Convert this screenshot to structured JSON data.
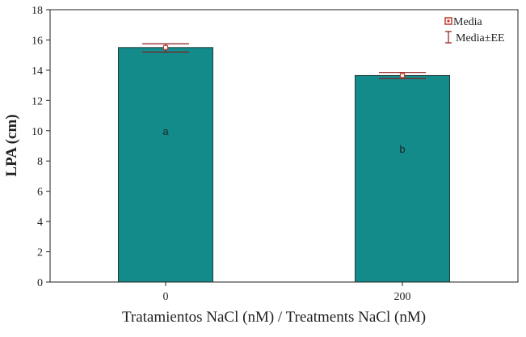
{
  "chart_data": {
    "type": "bar",
    "title": "",
    "categories": [
      "0",
      "200"
    ],
    "values": [
      15.5,
      13.65
    ],
    "error_low": [
      15.2,
      13.45
    ],
    "error_high": [
      15.75,
      13.85
    ],
    "significance_letters": [
      "a",
      "b"
    ],
    "xlabel": "Tratamientos NaCl (nM) / Treatments NaCl (nM)",
    "ylabel": "LPA (cm)",
    "ylim": [
      0,
      18
    ],
    "yticks": [
      0,
      2,
      4,
      6,
      8,
      10,
      12,
      14,
      16,
      18
    ],
    "grid": false,
    "legend": {
      "position": "top-right",
      "entries": [
        {
          "label": "Media",
          "marker": "square"
        },
        {
          "label": "Media±EE",
          "marker": "error-bar"
        }
      ]
    },
    "colors": {
      "bar_fill": "#138b8b",
      "bar_stroke": "#1f3a3a",
      "error_bar": "#8b1a1a",
      "mean_marker": "#c0392b",
      "axis": "#222222"
    }
  }
}
